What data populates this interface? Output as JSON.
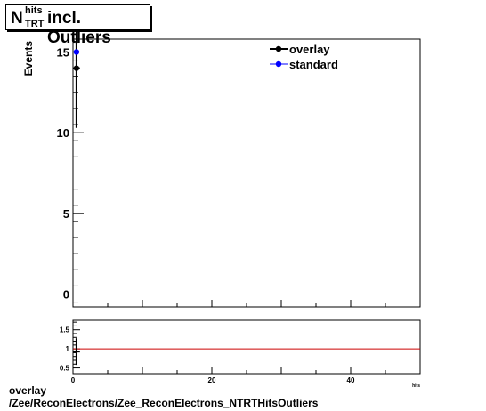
{
  "title": {
    "symbol": "N",
    "superscript": "hits",
    "subscript": "TRT",
    "rest": "incl. Outliers"
  },
  "footer": {
    "line1": "overlay",
    "line2": "/Zee/ReconElectrons/Zee_ReconElectrons_NTRTHitsOutliers"
  },
  "colors": {
    "overlay": "#000000",
    "standard": "#0000ff",
    "ratio_line": "#cc0000",
    "frame": "#000000"
  },
  "chart_data": [
    {
      "type": "scatter",
      "ylabel": "Events",
      "xlim": [
        0,
        50
      ],
      "ylim": [
        -0.8,
        15.8
      ],
      "y_ticks": [
        0,
        5,
        10,
        15
      ],
      "legend_position": "top-right",
      "series": [
        {
          "name": "overlay",
          "x": [
            0.5
          ],
          "y": [
            14
          ],
          "yerr": [
            3.7
          ]
        },
        {
          "name": "standard",
          "x": [
            0.5
          ],
          "y": [
            15
          ]
        }
      ]
    },
    {
      "type": "scatter",
      "xlim": [
        0,
        50
      ],
      "ylim": [
        0.35,
        1.75
      ],
      "x_ticks": [
        0,
        20,
        40
      ],
      "y_ticks": [
        0.5,
        1,
        1.5
      ],
      "y_tick_labels": [
        "0.5",
        "1",
        "1.5"
      ],
      "xlabel": "hits",
      "reference_line": 1,
      "series": [
        {
          "x": [
            0.5
          ],
          "y": [
            0.93
          ],
          "yerr": [
            0.35
          ]
        }
      ]
    }
  ]
}
